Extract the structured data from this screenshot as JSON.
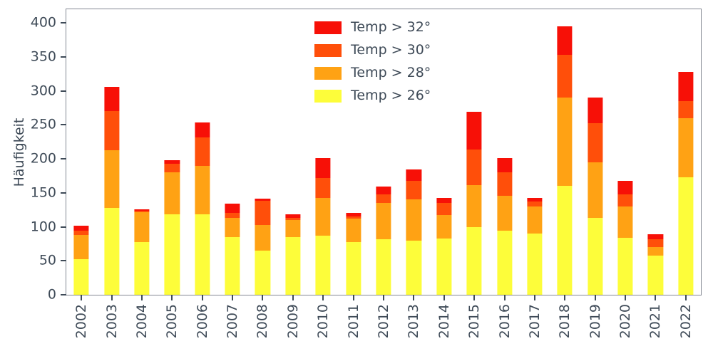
{
  "chart_data": {
    "type": "bar",
    "stacked": true,
    "title": "",
    "xlabel": "",
    "ylabel": "Häufigkeit",
    "ylim": [
      0,
      420
    ],
    "yticks": [
      0,
      50,
      100,
      150,
      200,
      250,
      300,
      350,
      400
    ],
    "grid": false,
    "legend_position": "upper center inside",
    "categories": [
      "2002",
      "2003",
      "2004",
      "2005",
      "2006",
      "2007",
      "2008",
      "2009",
      "2010",
      "2011",
      "2012",
      "2013",
      "2014",
      "2015",
      "2016",
      "2017",
      "2018",
      "2019",
      "2020",
      "2021",
      "2022"
    ],
    "series": [
      {
        "name": "Temp > 26°",
        "color": "#fdfd3a",
        "values": [
          52,
          128,
          78,
          118,
          118,
          85,
          65,
          85,
          87,
          78,
          82,
          80,
          83,
          99,
          94,
          90,
          160,
          113,
          84,
          58,
          173
        ]
      },
      {
        "name": "Temp > 28°",
        "color": "#ffa214",
        "values": [
          36,
          85,
          44,
          62,
          72,
          28,
          38,
          25,
          55,
          34,
          53,
          60,
          34,
          62,
          52,
          40,
          130,
          82,
          46,
          12,
          87
        ]
      },
      {
        "name": "Temp > 30°",
        "color": "#ff4f0a",
        "values": [
          6,
          57,
          2,
          13,
          42,
          7,
          35,
          3,
          30,
          3,
          13,
          28,
          18,
          53,
          34,
          7,
          63,
          57,
          18,
          12,
          25
        ]
      },
      {
        "name": "Temp > 32°",
        "color": "#f71007",
        "values": [
          8,
          36,
          2,
          5,
          22,
          14,
          3,
          5,
          29,
          5,
          11,
          16,
          7,
          55,
          21,
          6,
          42,
          38,
          20,
          7,
          43
        ]
      }
    ],
    "totals": [
      102,
      306,
      126,
      198,
      254,
      134,
      141,
      118,
      201,
      120,
      159,
      184,
      142,
      269,
      201,
      143,
      395,
      290,
      168,
      89,
      328
    ],
    "legend": [
      {
        "label": "Temp > 32°",
        "color": "#f71007"
      },
      {
        "label": "Temp > 30°",
        "color": "#ff4f0a"
      },
      {
        "label": "Temp > 28°",
        "color": "#ffa214"
      },
      {
        "label": "Temp > 26°",
        "color": "#fdfd3a"
      }
    ]
  },
  "colors": {
    "text": "#3e4a57",
    "spine": "#848993",
    "background": "#ffffff"
  }
}
